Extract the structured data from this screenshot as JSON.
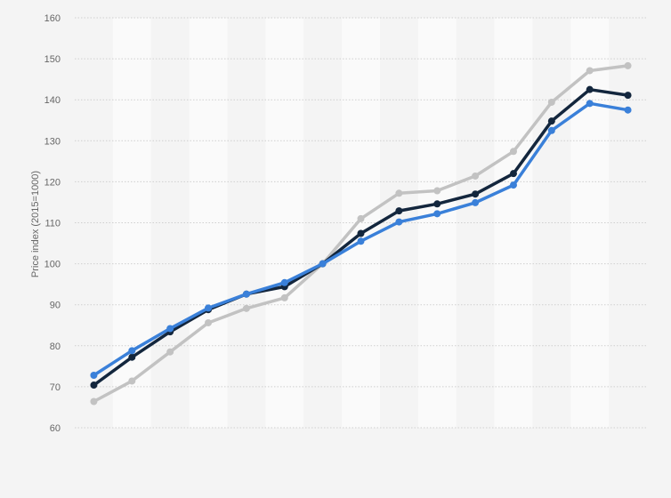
{
  "chart_data": {
    "type": "line",
    "title": "",
    "xlabel": "",
    "ylabel": "Price index (2015=1000)",
    "ylim": [
      60,
      160
    ],
    "yticks": [
      60,
      70,
      80,
      90,
      100,
      110,
      120,
      130,
      140,
      150,
      160
    ],
    "grid": true,
    "x": [
      1,
      2,
      3,
      4,
      5,
      6,
      7,
      8,
      9,
      10,
      11,
      12,
      13,
      14,
      15
    ],
    "series": [
      {
        "color": "#3a80d9",
        "values": [
          72.8,
          78.8,
          84.2,
          89.2,
          92.6,
          95.4,
          100.0,
          105.5,
          110.2,
          112.2,
          114.9,
          119.2,
          132.5,
          139.1,
          137.5
        ]
      },
      {
        "color": "#13263d",
        "values": [
          70.4,
          77.2,
          83.4,
          88.8,
          92.6,
          94.4,
          100.0,
          107.4,
          112.9,
          114.6,
          117.0,
          122.0,
          134.8,
          142.5,
          141.1
        ]
      },
      {
        "color": "#c2c2c2",
        "values": [
          66.4,
          71.4,
          78.5,
          85.6,
          89.1,
          91.7,
          100.0,
          111.0,
          117.2,
          117.8,
          121.4,
          127.4,
          139.4,
          147.1,
          148.3
        ]
      }
    ]
  }
}
